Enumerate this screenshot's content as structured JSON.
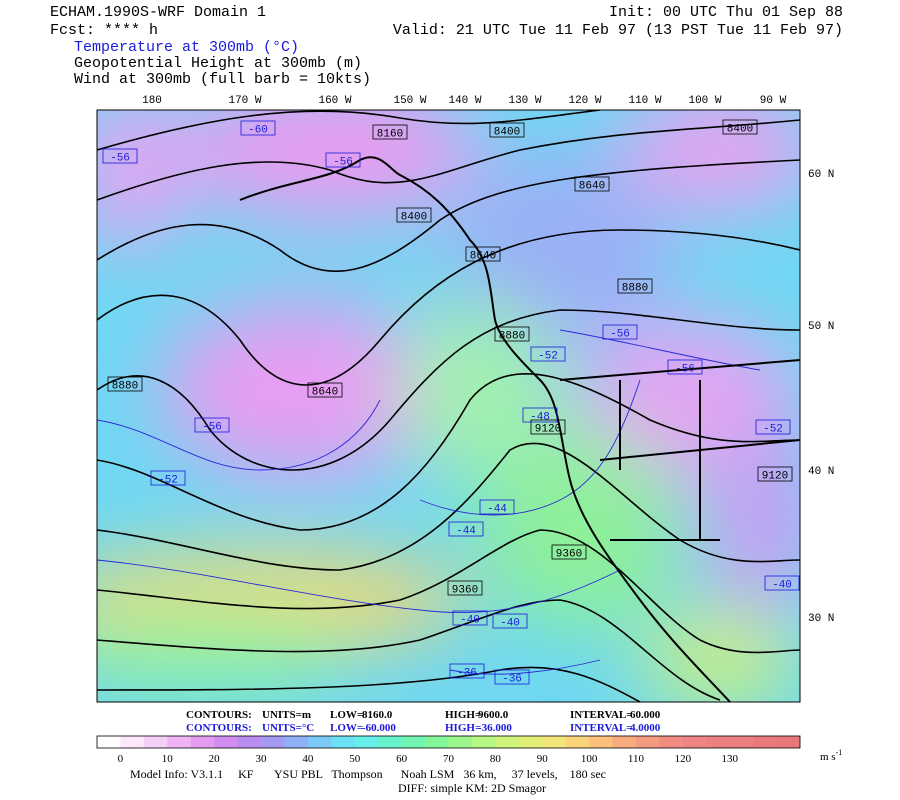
{
  "header": {
    "title": "ECHAM.1990S-WRF Domain 1",
    "forecast": "Fcst: **** h",
    "init": "Init: 00 UTC Thu 01 Sep 88",
    "valid": "Valid: 21 UTC Tue 11 Feb 97 (13 PST Tue 11 Feb 97)",
    "fields": [
      "Temperature at 300mb (°C)",
      "Geopotential Height at 300mb (m)",
      "Wind at 300mb (full barb = 10kts)"
    ]
  },
  "map": {
    "longitude_labels": [
      "180",
      "170 W",
      "160 W",
      "150 W",
      "140 W",
      "130 W",
      "120 W",
      "110 W",
      "100 W",
      "90 W"
    ],
    "latitude_labels": [
      "60 N",
      "50 N",
      "40 N",
      "30 N"
    ],
    "height_labels": [
      "8160",
      "8400",
      "8400",
      "8400",
      "8640",
      "8640",
      "8880",
      "8880",
      "8880",
      "8640",
      "9120",
      "9120",
      "9360",
      "9360"
    ],
    "temperature_labels": [
      "-60",
      "-56",
      "-56",
      "-56",
      "-56",
      "-52",
      "-48",
      "-56",
      "-52",
      "-52",
      "-44",
      "-44",
      "-40",
      "-40",
      "-40",
      "-36",
      "-36"
    ]
  },
  "footer": {
    "height_contours": [
      "CONTOURS:",
      "UNITS=m",
      "LOW=",
      "8160.0",
      "HIGH=",
      "9600.0",
      "INTERVAL=",
      "60.000"
    ],
    "temperature_contours": [
      "CONTOURS:",
      "UNITS=°C",
      "LOW=",
      "-60.000",
      "HIGH=",
      "-36.000",
      "INTERVAL=",
      "4.0000"
    ],
    "colorbar": {
      "labels": [
        "0",
        "10",
        "20",
        "30",
        "40",
        "50",
        "60",
        "70",
        "80",
        "90",
        "100",
        "110",
        "120",
        "130"
      ],
      "unit": "m s",
      "unit_exponent": "-1",
      "colors": [
        "#ffffff",
        "#fbe8fb",
        "#f6cff6",
        "#f0b4f4",
        "#e49cf0",
        "#d08cee",
        "#b98cf0",
        "#a39af4",
        "#8fb0f6",
        "#7cc8f6",
        "#6ce0f4",
        "#66eee8",
        "#66f2cc",
        "#70f4b0",
        "#84f69a",
        "#9cf68a",
        "#b6f682",
        "#cef47c",
        "#e2f078",
        "#f2e678",
        "#f8d47a",
        "#fac07c",
        "#f8ac7e",
        "#f49a80",
        "#f08c82",
        "#ee8484",
        "#ec8080",
        "#ea7e80",
        "#e87a7e",
        "#e6787c"
      ]
    },
    "model_info": "Model Info: V3.1.1     KF       YSU PBL   Thompson      Noah LSM   36 km,     37 levels,    180 sec",
    "diff_info": "DIFF: simple KM: 2D Smagor"
  }
}
